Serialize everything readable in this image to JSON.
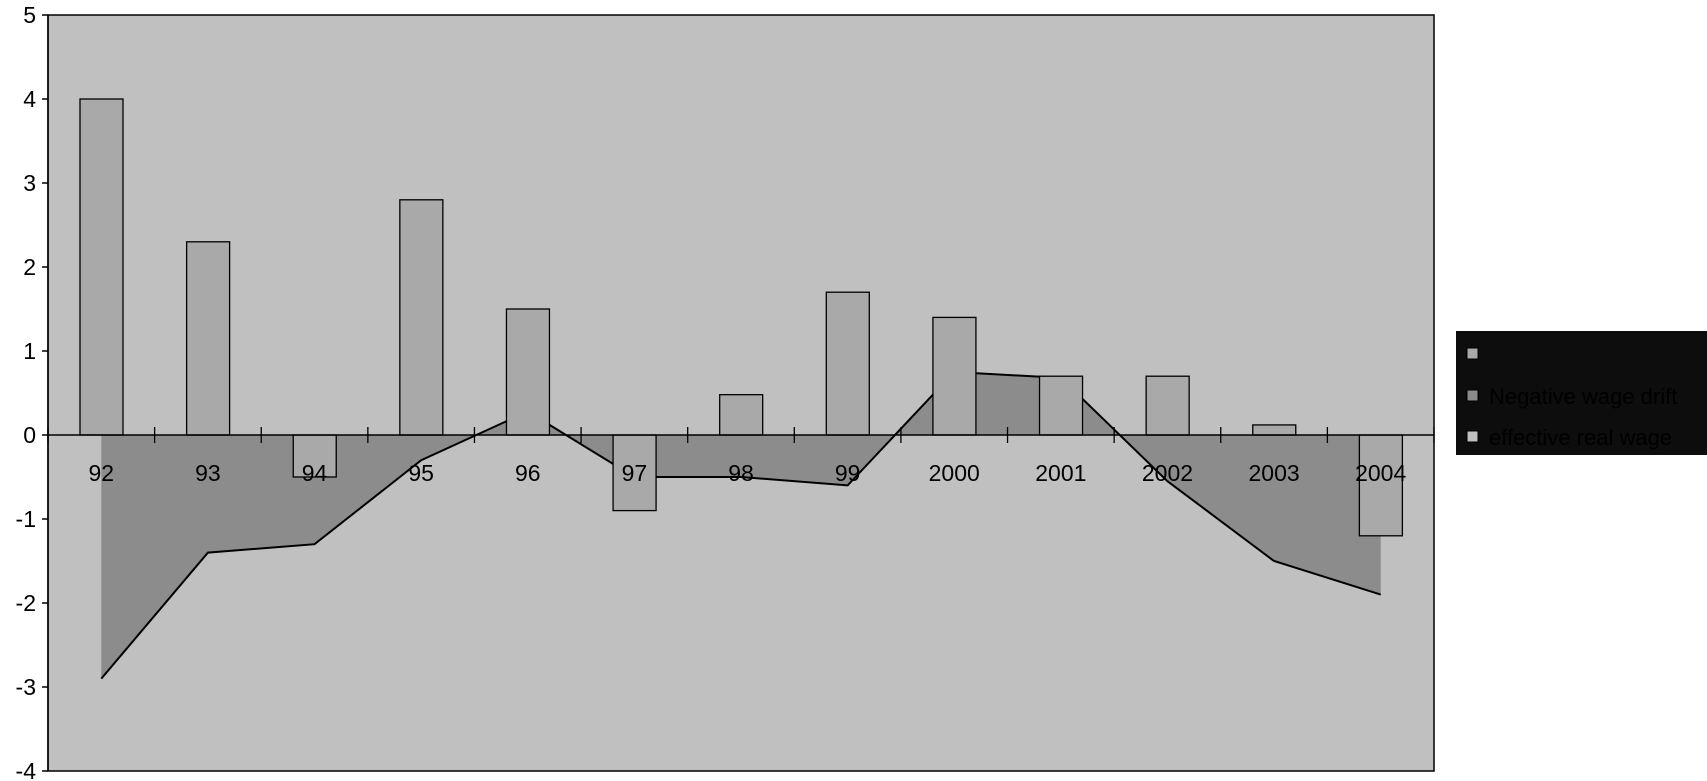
{
  "chart_data": {
    "type": "bar",
    "title": "",
    "xlabel": "",
    "ylabel": "",
    "categories": [
      "92",
      "93",
      "94",
      "95",
      "96",
      "97",
      "98",
      "99",
      "2000",
      "2001",
      "2002",
      "2003",
      "2004"
    ],
    "ylim": [
      -4,
      5
    ],
    "yticks": [
      "5",
      "4",
      "3",
      "2",
      "1",
      "0",
      "-1",
      "-2",
      "-3",
      "-4"
    ],
    "grid": false,
    "legend_position": "right",
    "series": [
      {
        "name": "",
        "kind": "bar",
        "color": "#a9a9a9",
        "values": [
          4.0,
          2.3,
          -0.5,
          2.8,
          1.5,
          -0.9,
          0.48,
          1.7,
          1.4,
          0.7,
          0.7,
          0.12,
          -1.2
        ]
      },
      {
        "name": "Negative wage drift",
        "kind": "area",
        "color": "#8c8c8c",
        "values": [
          -2.9,
          -1.4,
          -1.3,
          -0.3,
          0.28,
          -0.5,
          -0.5,
          -0.6,
          0.75,
          0.68,
          -0.55,
          -1.5,
          -1.9
        ]
      },
      {
        "name": "effective real wage",
        "kind": "legend-only",
        "color": "#c0c0c0"
      }
    ],
    "colors": {
      "plot_background": "#c0c0c0",
      "legend_background": "#0d0d0d",
      "axis": "#000000"
    }
  }
}
